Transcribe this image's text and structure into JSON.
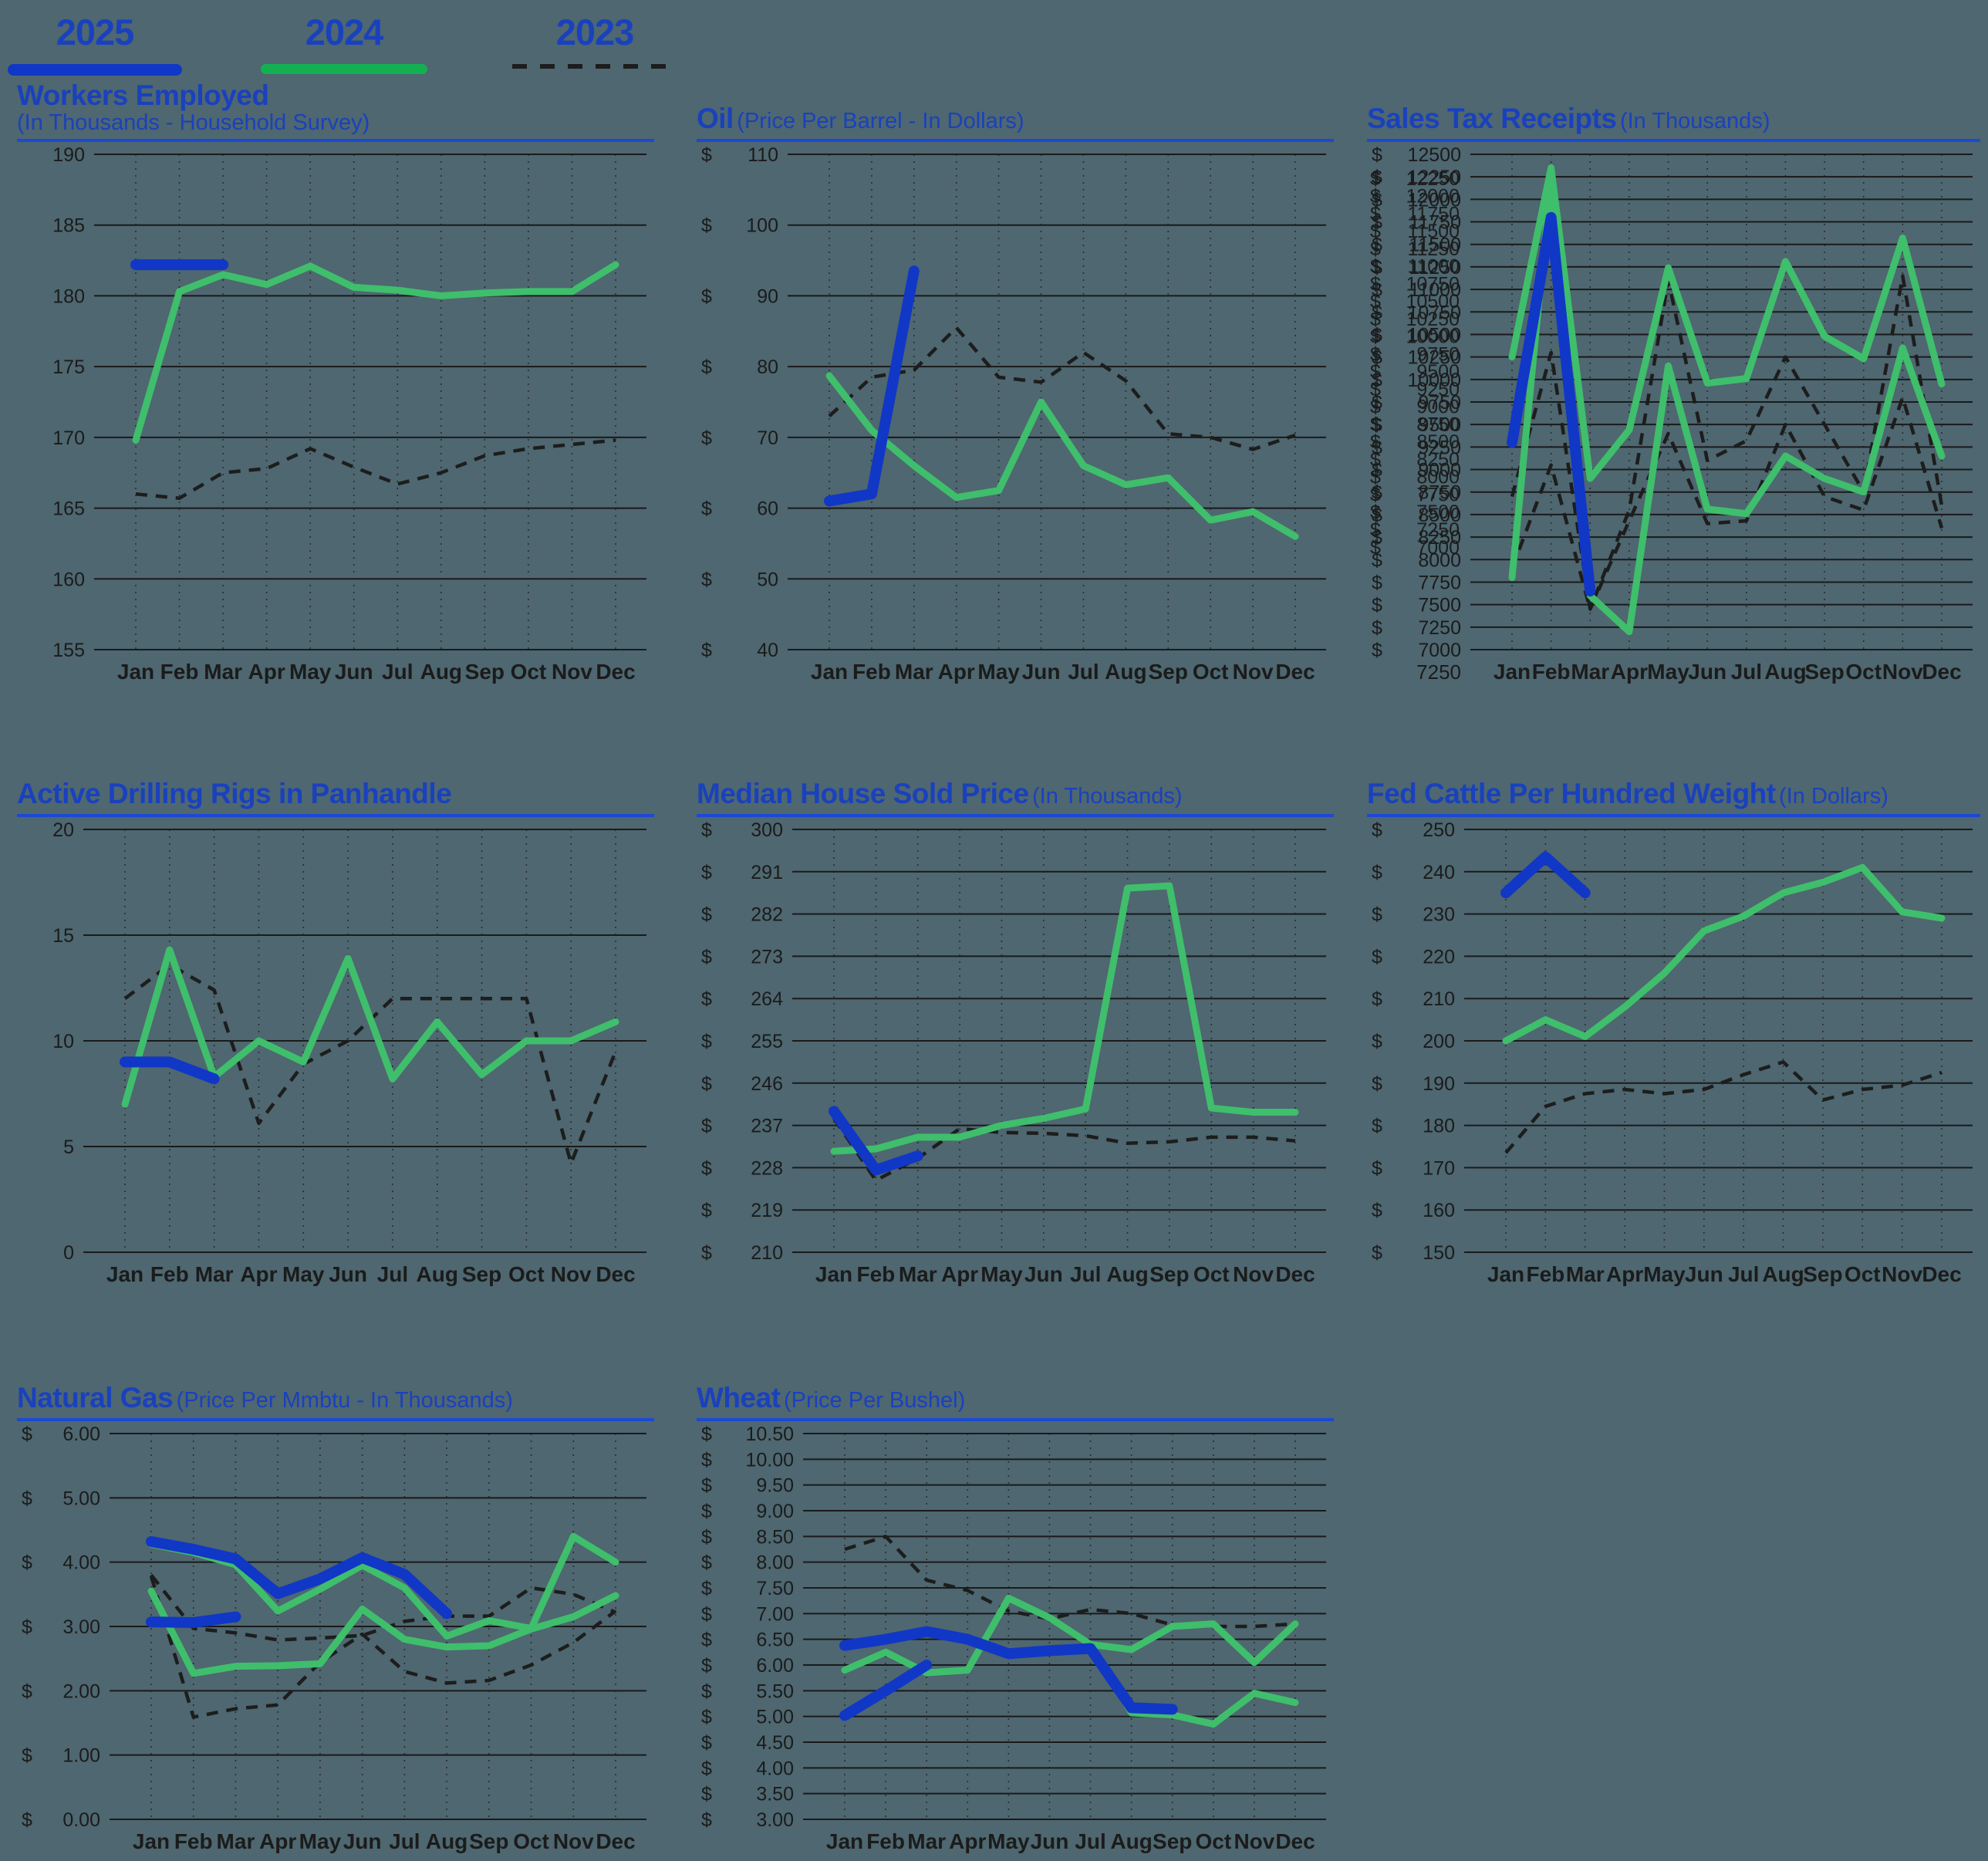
{
  "legend": {
    "items": [
      {
        "label": "2025",
        "style": "solid-blue"
      },
      {
        "label": "2024",
        "style": "solid-green"
      },
      {
        "label": "2023",
        "style": "dashed-dark"
      }
    ]
  },
  "colors": {
    "background": "#4e6770",
    "title_blue": "#1a41bd",
    "rule_blue": "#1b49d5",
    "series_2025_blue": "#1137c7",
    "series_2024_green": "#3fbe6c",
    "legend_green": "#13b052",
    "series_2023_dashed": "#1d1d1d",
    "gridline": "#1a1a1a",
    "axis_text": "#1b1b1b"
  },
  "months": [
    "Jan",
    "Feb",
    "Mar",
    "Apr",
    "May",
    "Jun",
    "Jul",
    "Aug",
    "Sep",
    "Oct",
    "Nov",
    "Dec"
  ],
  "chart_data": [
    {
      "id": "workers",
      "type": "line",
      "title": "Workers Employed",
      "subtitle": "(In Thousands - Household Survey)",
      "subtitle_layout": "stacked",
      "categories": [
        "Jan",
        "Feb",
        "Mar",
        "Apr",
        "May",
        "Jun",
        "Jul",
        "Aug",
        "Sep",
        "Oct",
        "Nov",
        "Dec"
      ],
      "y_axis": {
        "min": 155,
        "max": 190,
        "step": 5,
        "prefix": "",
        "decimals": 0
      },
      "series": [
        {
          "name": "2023",
          "year": "2023",
          "values": [
            166.0,
            165.7,
            167.5,
            167.8,
            169.2,
            167.9,
            166.7,
            167.5,
            168.7,
            169.2,
            169.5,
            169.8
          ]
        },
        {
          "name": "2024",
          "year": "2024",
          "values": [
            169.8,
            180.3,
            181.5,
            180.8,
            182.1,
            180.6,
            180.4,
            180.0,
            180.2,
            180.3,
            180.3,
            182.2
          ]
        },
        {
          "name": "2025",
          "year": "2025",
          "values": [
            182.2,
            182.2,
            182.2
          ]
        }
      ]
    },
    {
      "id": "oil",
      "type": "line",
      "title": "Oil",
      "subtitle": "(Price Per Barrel - In Dollars)",
      "subtitle_layout": "inline",
      "categories": [
        "Jan",
        "Feb",
        "Mar",
        "Apr",
        "May",
        "Jun",
        "Jul",
        "Aug",
        "Sep",
        "Oct",
        "Nov",
        "Dec"
      ],
      "y_axis": {
        "min": 40,
        "max": 110,
        "step": 10,
        "prefix": "$",
        "decimals": 0
      },
      "series": [
        {
          "name": "2023",
          "year": "2023",
          "values": [
            73,
            78.5,
            79.5,
            85.5,
            78.5,
            77.8,
            82,
            78,
            70.5,
            70,
            68.3,
            70.3
          ]
        },
        {
          "name": "2024",
          "year": "2024",
          "values": [
            78.7,
            71,
            66,
            61.5,
            62.5,
            75,
            66,
            63.3,
            64.3,
            58.3,
            59.5,
            56
          ]
        },
        {
          "name": "2025",
          "year": "2025",
          "values": [
            61,
            62,
            93.5
          ]
        }
      ]
    },
    {
      "id": "salestax",
      "type": "line",
      "title": "Sales Tax Receipts",
      "subtitle": "(In Thousands)",
      "subtitle_layout": "inline",
      "categories": [
        "Jan",
        "Feb",
        "Mar",
        "Apr",
        "May",
        "Jun",
        "Jul",
        "Aug",
        "Sep",
        "Oct",
        "Nov",
        "Dec"
      ],
      "y_axis": {
        "min": 7000,
        "max": 12500,
        "step": 250,
        "prefix": "$",
        "decimals": 0,
        "crowded_labels": true,
        "extra_axis_label": "7250"
      },
      "series": [
        {
          "name": "2023 (upper line)",
          "year": "2023",
          "values": [
            8700,
            10300,
            7450,
            8550,
            11100,
            9100,
            9320,
            10250,
            9500,
            8750,
            11150,
            8600
          ]
        },
        {
          "name": "2023 (lower line)",
          "year": "2023",
          "values": [
            7900,
            9050,
            7450,
            8430,
            9400,
            8400,
            8430,
            9500,
            8700,
            8550,
            9800,
            8350
          ]
        },
        {
          "name": "2024 (upper line)",
          "year": "2024",
          "values": [
            10250,
            12350,
            8900,
            9440,
            11240,
            9960,
            10010,
            11310,
            10480,
            10230,
            11570,
            9950
          ]
        },
        {
          "name": "2024 (lower line)",
          "year": "2024",
          "values": [
            7800,
            12250,
            7600,
            7200,
            10150,
            8560,
            8510,
            9150,
            8900,
            8750,
            10350,
            9150
          ]
        },
        {
          "name": "2025",
          "year": "2025",
          "values": [
            9300,
            11800,
            7650
          ]
        }
      ]
    },
    {
      "id": "rigs",
      "type": "line",
      "title": "Active Drilling Rigs in Panhandle",
      "subtitle": "",
      "subtitle_layout": "inline",
      "categories": [
        "Jan",
        "Feb",
        "Mar",
        "Apr",
        "May",
        "Jun",
        "Jul",
        "Aug",
        "Sep",
        "Oct",
        "Nov",
        "Dec"
      ],
      "y_axis": {
        "min": 0,
        "max": 20,
        "step": 5,
        "prefix": "",
        "decimals": 0
      },
      "series": [
        {
          "name": "2023",
          "year": "2023",
          "values": [
            12,
            13.6,
            12.4,
            6.1,
            8.9,
            10,
            12,
            12,
            12,
            12,
            4.2,
            9.5
          ]
        },
        {
          "name": "2024",
          "year": "2024",
          "values": [
            7,
            14.3,
            8.3,
            10,
            9,
            13.9,
            8.2,
            10.9,
            8.4,
            10,
            10,
            10.9
          ]
        },
        {
          "name": "2025",
          "year": "2025",
          "values": [
            9,
            9,
            8.2
          ]
        }
      ]
    },
    {
      "id": "house",
      "type": "line",
      "title": "Median House Sold Price",
      "subtitle": "(In Thousands)",
      "subtitle_layout": "inline",
      "categories": [
        "Jan",
        "Feb",
        "Mar",
        "Apr",
        "May",
        "Jun",
        "Jul",
        "Aug",
        "Sep",
        "Oct",
        "Nov",
        "Dec"
      ],
      "y_axis": {
        "min": 210,
        "max": 300,
        "step": 9,
        "prefix": "$",
        "decimals": 0
      },
      "series": [
        {
          "name": "2023",
          "year": "2023",
          "values": [
            238.5,
            225.3,
            230,
            236.3,
            235.5,
            235.3,
            234.8,
            233.2,
            233.5,
            234.5,
            234.5,
            233.7
          ]
        },
        {
          "name": "2024",
          "year": "2024",
          "values": [
            231.5,
            232,
            234.5,
            234.5,
            237,
            238.5,
            240.5,
            287.5,
            288,
            240.7,
            239.8,
            239.8
          ]
        },
        {
          "name": "2025",
          "year": "2025",
          "values": [
            240,
            227.5,
            230.5
          ]
        }
      ]
    },
    {
      "id": "cattle",
      "type": "line",
      "title": "Fed Cattle Per Hundred Weight",
      "subtitle": "(In Dollars)",
      "subtitle_layout": "inline",
      "categories": [
        "Jan",
        "Feb",
        "Mar",
        "Apr",
        "May",
        "Jun",
        "Jul",
        "Aug",
        "Sep",
        "Oct",
        "Nov",
        "Dec"
      ],
      "y_axis": {
        "min": 150,
        "max": 250,
        "step": 10,
        "prefix": "$",
        "decimals": 0
      },
      "series": [
        {
          "name": "2023",
          "year": "2023",
          "values": [
            173.5,
            184.5,
            187.5,
            188.5,
            187.5,
            188.5,
            192,
            195,
            186,
            188.5,
            189.5,
            192.5
          ]
        },
        {
          "name": "2024",
          "year": "2024",
          "values": [
            200,
            205,
            201,
            208,
            216,
            226,
            229.5,
            235,
            237.5,
            241,
            230.5,
            229
          ]
        },
        {
          "name": "2025",
          "year": "2025",
          "values": [
            235,
            243.5,
            235
          ]
        }
      ]
    },
    {
      "id": "gas",
      "type": "line",
      "title": "Natural Gas",
      "subtitle": "(Price Per Mmbtu - In Thousands)",
      "subtitle_layout": "inline",
      "categories": [
        "Jan",
        "Feb",
        "Mar",
        "Apr",
        "May",
        "Jun",
        "Jul",
        "Aug",
        "Sep",
        "Oct",
        "Nov",
        "Dec"
      ],
      "y_axis": {
        "min": 0,
        "max": 6,
        "step": 1,
        "prefix": "$",
        "decimals": 2
      },
      "series": [
        {
          "name": "2023 (upper line)",
          "year": "2023",
          "values": [
            3.8,
            2.97,
            2.9,
            2.79,
            2.82,
            2.86,
            3.08,
            3.16,
            3.16,
            3.6,
            3.5,
            3.22
          ]
        },
        {
          "name": "2023 (lower line)",
          "year": "2023",
          "values": [
            3.78,
            1.59,
            1.72,
            1.78,
            2.44,
            2.88,
            2.3,
            2.12,
            2.16,
            2.4,
            2.75,
            3.24
          ]
        },
        {
          "name": "2024 (upper line)",
          "year": "2024",
          "values": [
            4.28,
            4.15,
            3.96,
            3.24,
            3.58,
            3.95,
            3.6,
            2.85,
            3.09,
            2.97,
            4.4,
            4.0
          ]
        },
        {
          "name": "2024 (lower line)",
          "year": "2024",
          "values": [
            3.55,
            2.27,
            2.38,
            2.39,
            2.42,
            3.27,
            2.8,
            2.68,
            2.7,
            2.96,
            3.15,
            3.48
          ]
        },
        {
          "name": "2025 (upper line)",
          "year": "2025",
          "values": [
            4.32,
            4.2,
            4.05,
            3.51,
            3.74,
            4.07,
            3.81,
            3.2
          ]
        },
        {
          "name": "2025 (lower line)",
          "year": "2025",
          "values": [
            3.07,
            3.06,
            3.15
          ]
        }
      ]
    },
    {
      "id": "wheat",
      "type": "line",
      "title": "Wheat",
      "subtitle": "(Price Per Bushel)",
      "subtitle_layout": "inline",
      "categories": [
        "Jan",
        "Feb",
        "Mar",
        "Apr",
        "May",
        "Jun",
        "Jul",
        "Aug",
        "Sep",
        "Oct",
        "Nov",
        "Dec"
      ],
      "y_axis": {
        "min": 3,
        "max": 10.5,
        "step": 0.5,
        "prefix": "$",
        "decimals": 2
      },
      "series": [
        {
          "name": "2023",
          "year": "2023",
          "values": [
            8.25,
            8.5,
            7.65,
            7.45,
            7.05,
            6.9,
            7.08,
            7.0,
            6.78,
            6.75,
            6.75,
            6.8
          ]
        },
        {
          "name": "2024 (upper line)",
          "year": "2024",
          "values": [
            5.9,
            6.25,
            5.85,
            5.9,
            7.3,
            6.92,
            6.4,
            6.3,
            6.75,
            6.8,
            6.05,
            6.8
          ]
        },
        {
          "name": "2024 (lower line)",
          "year": "2024",
          "values": [
            null,
            null,
            null,
            null,
            null,
            null,
            6.4,
            5.07,
            5.03,
            4.85,
            5.45,
            5.27
          ]
        },
        {
          "name": "2025 (upper line)",
          "year": "2025",
          "values": [
            6.38,
            6.5,
            6.65,
            6.5,
            6.22,
            6.28,
            6.32,
            5.17,
            5.14
          ]
        },
        {
          "name": "2025 (lower line)",
          "year": "2025",
          "values": [
            5.02,
            5.5,
            6.0
          ]
        }
      ]
    }
  ]
}
